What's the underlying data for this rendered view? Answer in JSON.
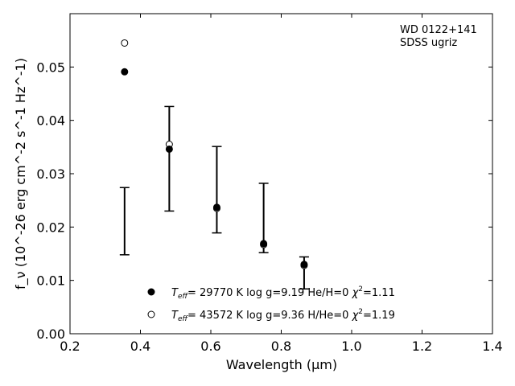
{
  "chart_data": {
    "type": "scatter",
    "xlabel": "Wavelength (μm)",
    "ylabel": "f_ν (10^-26 erg cm^-2 s^-1 Hz^-1)",
    "xlim": [
      0.2,
      1.4
    ],
    "ylim": [
      0.0,
      0.06
    ],
    "x_ticks": [
      0.2,
      0.4,
      0.6,
      0.8,
      1.0,
      1.2,
      1.4
    ],
    "x_tick_labels": [
      "0.2",
      "0.4",
      "0.6",
      "0.8",
      "1.0",
      "1.2",
      "1.4"
    ],
    "y_ticks": [
      0.0,
      0.01,
      0.02,
      0.03,
      0.04,
      0.05
    ],
    "y_tick_labels": [
      "0.00",
      "0.01",
      "0.02",
      "0.03",
      "0.04",
      "0.05"
    ],
    "grid": false,
    "annotation": [
      "WD 0122+141",
      "SDSS ugriz"
    ],
    "observed": {
      "x": [
        0.355,
        0.482,
        0.617,
        0.75,
        0.865
      ],
      "y": [
        0.0211,
        0.0328,
        0.027,
        0.0217,
        0.0114
      ],
      "err": [
        0.0063,
        0.0098,
        0.0081,
        0.0065,
        0.003
      ]
    },
    "series": [
      {
        "label_parts": [
          "T",
          "eff",
          "= 29770 K  log g=9.19  He/H=0  ",
          "χ",
          "2",
          "=1.11"
        ],
        "marker": "filled-circle",
        "x": [
          0.355,
          0.482,
          0.617,
          0.75,
          0.865
        ],
        "y": [
          0.0491,
          0.0346,
          0.0237,
          0.0169,
          0.013
        ]
      },
      {
        "label_parts": [
          "T",
          "eff",
          "= 43572 K  log g=9.36  H/He=0  ",
          "χ",
          "2",
          "=1.19"
        ],
        "marker": "open-circle",
        "x": [
          0.355,
          0.482,
          0.617,
          0.75,
          0.865
        ],
        "y": [
          0.0545,
          0.0355,
          0.0235,
          0.0167,
          0.0128
        ]
      }
    ],
    "legend_position": "lower-center"
  }
}
